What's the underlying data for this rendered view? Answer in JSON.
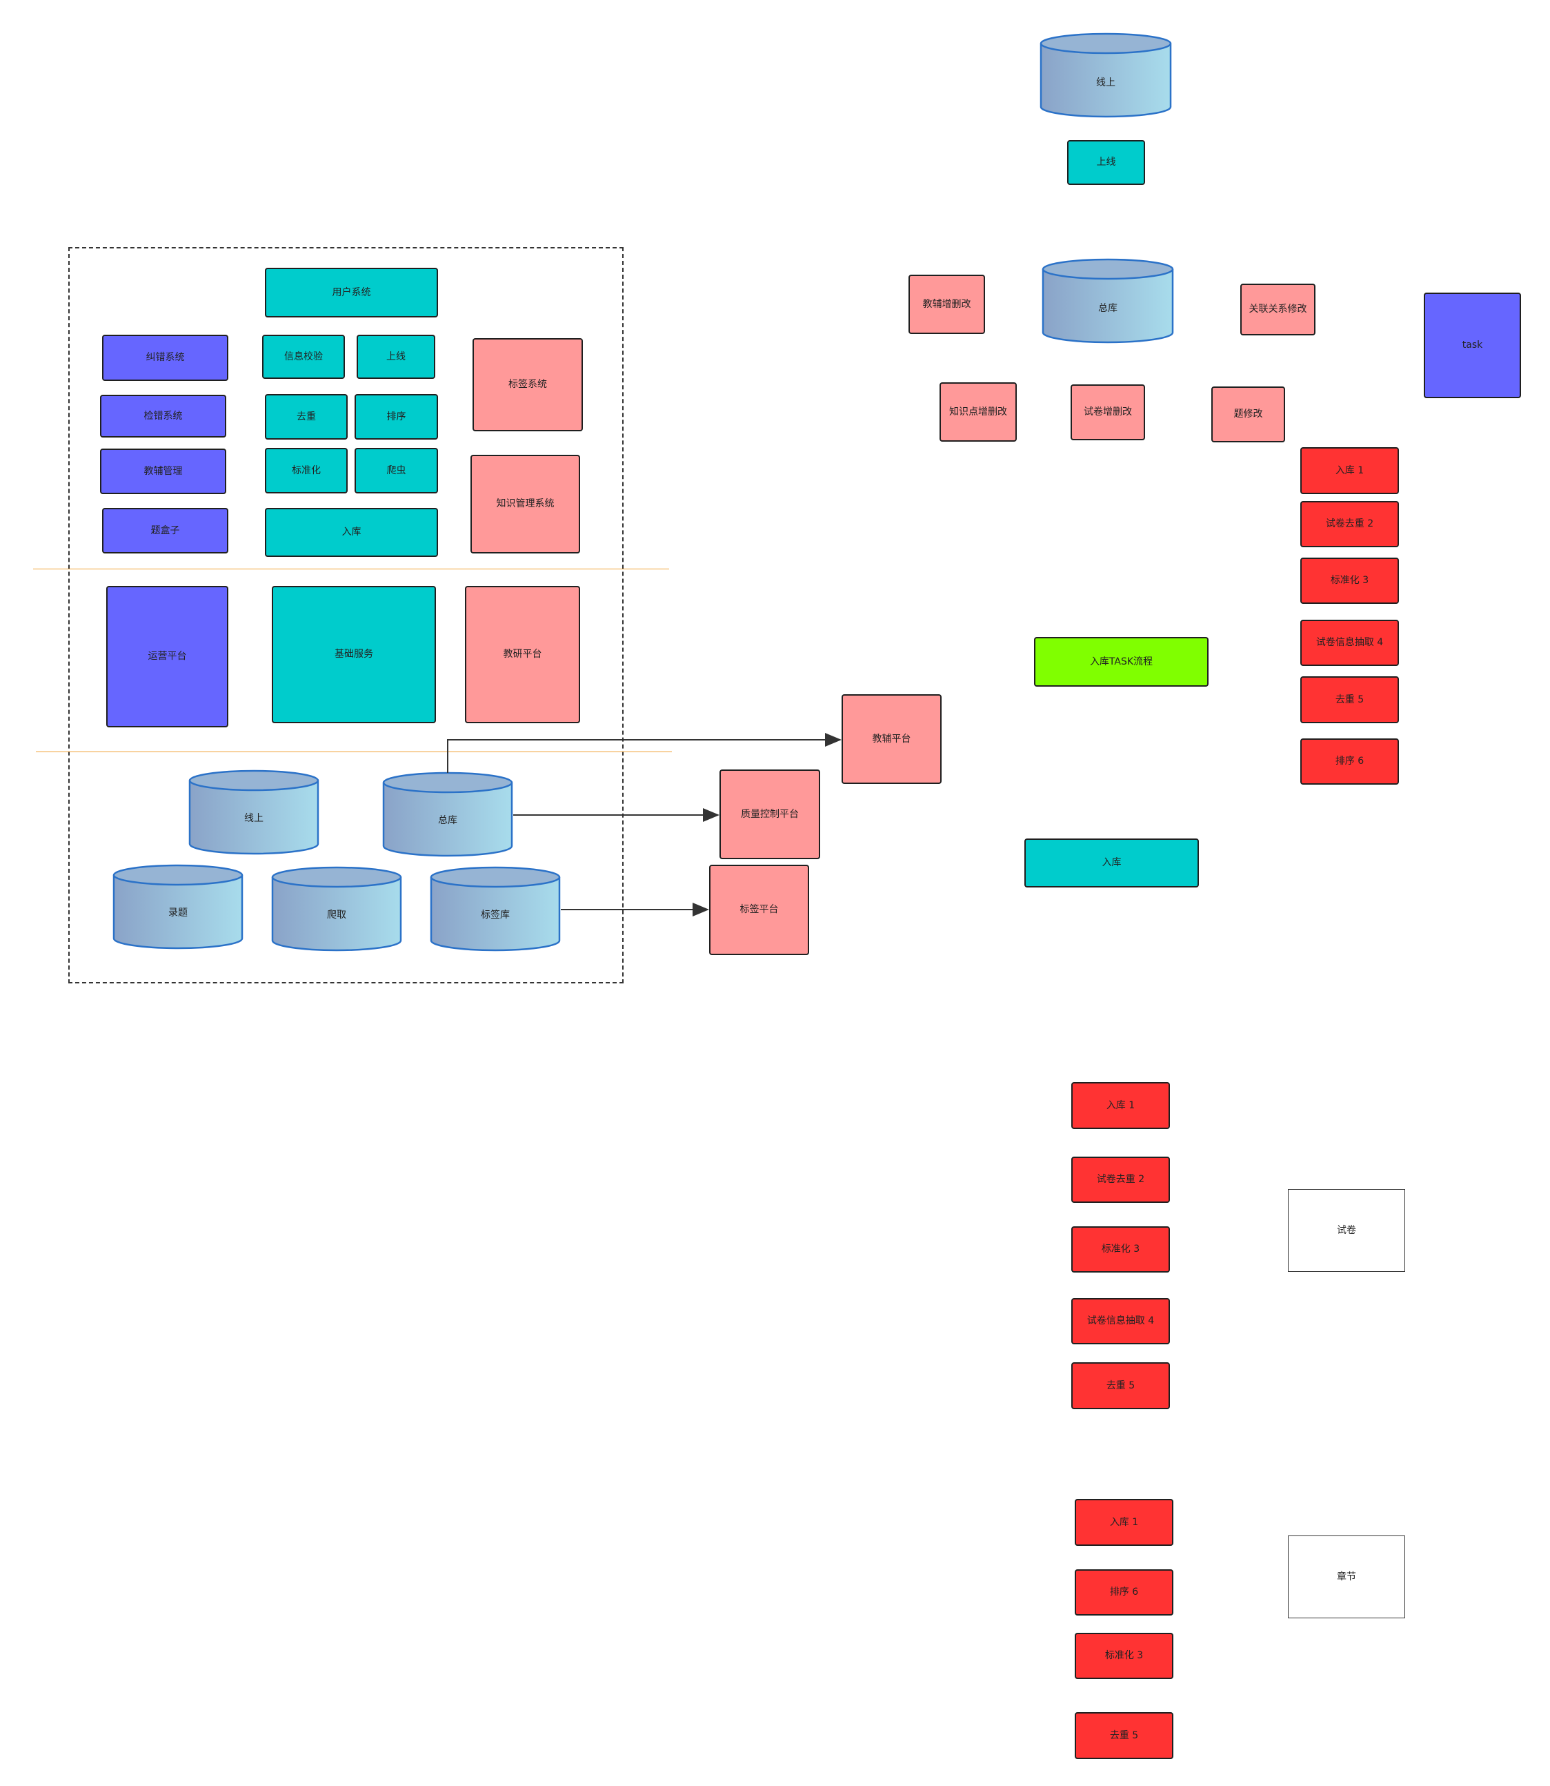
{
  "colors": {
    "blue": "#6666ff",
    "teal": "#00cccc",
    "pink": "#ff9999",
    "red": "#ff3333",
    "green": "#80ff00",
    "cylinder_dark": "#8aa3c8",
    "cylinder_light": "#a8dcec",
    "cylinder_stroke": "#2b72c8",
    "separator": "#f0a030"
  },
  "architecture": {
    "top_layer": {
      "user_system": "用户系统",
      "correction_system": "纠错系统",
      "check_system": "检错系统",
      "tutoring_management": "教辅管理",
      "box_item": "题盒子",
      "info_verification": "信息校验",
      "online_top": "上线",
      "dedup": "去重",
      "sort": "排序",
      "standardize": "标准化",
      "crawler": "爬虫",
      "storage_entry": "入库",
      "tag_system": "标签系统",
      "knowledge_management_system": "知识管理系统"
    },
    "middle_layer": {
      "operations_platform": "运营平台",
      "basic_services": "基础服务",
      "research_platform": "教研平台"
    },
    "data_layer": {
      "online_db": "线上",
      "main_db": "总库",
      "entry_db": "录题",
      "crawl_db": "爬取",
      "tag_db": "标签库"
    }
  },
  "external_platforms": {
    "tutoring_platform": "教辅平台",
    "quality_platform": "质量控制平台",
    "tag_platform": "标签平台"
  },
  "flow_top": {
    "online_db": "线上",
    "go_online": "上线",
    "main_db": "总库",
    "tutoring_crud": "教辅增删改",
    "relation_edit": "关联关系修改",
    "knowledge_crud": "知识点增删改",
    "paper_crud": "试卷增删改",
    "question_edit": "题修改",
    "task": "task"
  },
  "task_steps_right": [
    "入库 1",
    "试卷去重 2",
    "标准化 3",
    "试卷信息抽取 4",
    "去重  5",
    "排序  6"
  ],
  "task_flow_label": "入库TASK流程",
  "entry_label": "入库",
  "paper_steps": [
    "入库 1",
    "试卷去重 2",
    "标准化 3",
    "试卷信息抽取 4",
    "去重  5"
  ],
  "paper_label": "试卷",
  "chapter_steps": [
    "入库 1",
    "排序  6",
    "标准化 3",
    "去重  5"
  ],
  "chapter_label": "章节"
}
